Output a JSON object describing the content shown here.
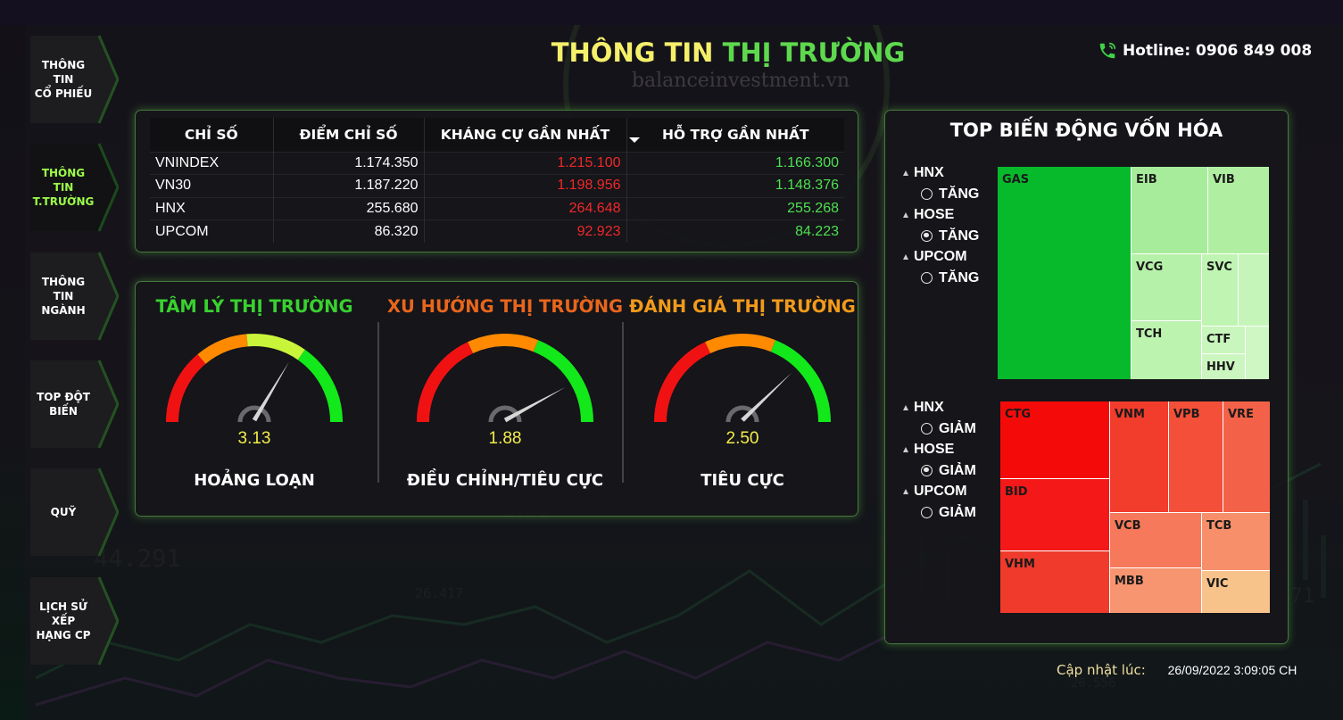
{
  "sidebar": {
    "items": [
      {
        "line1": "THÔNG TIN",
        "line2": "CỔ PHIẾU",
        "active": false
      },
      {
        "line1": "THÔNG TIN",
        "line2": "T.TRƯỜNG",
        "active": true
      },
      {
        "line1": "THÔNG TIN",
        "line2": "NGÀNH",
        "active": false
      },
      {
        "line1": "TOP ĐỘT",
        "line2": "BIẾN",
        "active": false
      },
      {
        "line1": "QUỸ",
        "line2": "",
        "active": false
      },
      {
        "line1": "LỊCH SỬ XẾP",
        "line2": "HẠNG CP",
        "active": false
      }
    ]
  },
  "header": {
    "title_part1": "THÔNG TIN",
    "title_part2": "THỊ TRƯỜNG",
    "hotline": "Hotline: 0906 849 008",
    "watermark": "balanceinvestment.vn"
  },
  "index_table": {
    "headers": [
      "CHỈ SỐ",
      "ĐIỂM CHỈ SỐ",
      "KHÁNG CỰ GẦN NHẤT",
      "HỖ TRỢ GẦN NHẤT"
    ],
    "rows": [
      {
        "name": "VNINDEX",
        "points": "1.174.350",
        "resistance": "1.215.100",
        "support": "1.166.300"
      },
      {
        "name": "VN30",
        "points": "1.187.220",
        "resistance": "1.198.956",
        "support": "1.148.376"
      },
      {
        "name": "HNX",
        "points": "255.680",
        "resistance": "264.648",
        "support": "255.268"
      },
      {
        "name": "UPCOM",
        "points": "86.320",
        "resistance": "92.923",
        "support": "84.223"
      }
    ]
  },
  "gauges": [
    {
      "title": "TÂM LÝ THỊ TRƯỜNG",
      "title_color": "#39d12f",
      "value": "3.13",
      "label": "HOẢNG LOẠN",
      "needle_angle": 120
    },
    {
      "title": "XU HƯỚNG THỊ TRƯỜNG",
      "title_color": "#e8661c",
      "value": "1.88",
      "label": "ĐIỀU CHỈNH/TIÊU CỰC",
      "needle_angle": 150
    },
    {
      "title": "ĐÁNH GIÁ THỊ TRƯỜNG",
      "title_color": "#f29a1a",
      "value": "2.50",
      "label": "TIÊU CỰC",
      "needle_angle": 135
    }
  ],
  "treemap": {
    "title": "TOP BIẾN ĐỘNG VỐN HÓA",
    "up_slicer": [
      {
        "exchange": "HNX",
        "option": "TĂNG",
        "selected": false
      },
      {
        "exchange": "HOSE",
        "option": "TĂNG",
        "selected": true
      },
      {
        "exchange": "UPCOM",
        "option": "TĂNG",
        "selected": false
      }
    ],
    "down_slicer": [
      {
        "exchange": "HNX",
        "option": "GIẢM",
        "selected": false
      },
      {
        "exchange": "HOSE",
        "option": "GIẢM",
        "selected": true
      },
      {
        "exchange": "UPCOM",
        "option": "GIẢM",
        "selected": false
      }
    ],
    "up_tiles": [
      {
        "code": "GAS",
        "color": "#07ba2c"
      },
      {
        "code": "EIB",
        "color": "#a6ec9a"
      },
      {
        "code": "VIB",
        "color": "#b0efa2"
      },
      {
        "code": "VCG",
        "color": "#b6f1a9"
      },
      {
        "code": "SVC",
        "color": "#bff4b2"
      },
      {
        "code": "",
        "color": "#c5f5b9"
      },
      {
        "code": "TCH",
        "color": "#bcf3af"
      },
      {
        "code": "CTF",
        "color": "#c8f6bc"
      },
      {
        "code": "",
        "color": "#cef7c3"
      },
      {
        "code": "HHV",
        "color": "#ccf6c0"
      }
    ],
    "down_tiles": [
      {
        "code": "CTG",
        "color": "#f50a0a"
      },
      {
        "code": "BID",
        "color": "#f41818"
      },
      {
        "code": "VHM",
        "color": "#ef3a2c"
      },
      {
        "code": "VNM",
        "color": "#f23c2c"
      },
      {
        "code": "VPB",
        "color": "#f44f38"
      },
      {
        "code": "VRE",
        "color": "#f36248"
      },
      {
        "code": "VCB",
        "color": "#f5795a"
      },
      {
        "code": "TCB",
        "color": "#f78f6a"
      },
      {
        "code": "MBB",
        "color": "#f69570"
      },
      {
        "code": "VIC",
        "color": "#f7c38b"
      }
    ]
  },
  "update": {
    "label": "Cập nhật lúc:",
    "timestamp": "26/09/2022 3:09:05 CH"
  },
  "colors": {
    "accent_green": "#5ed94e",
    "accent_yellow": "#f5f06a",
    "panel_glow": "#6ec85a"
  }
}
